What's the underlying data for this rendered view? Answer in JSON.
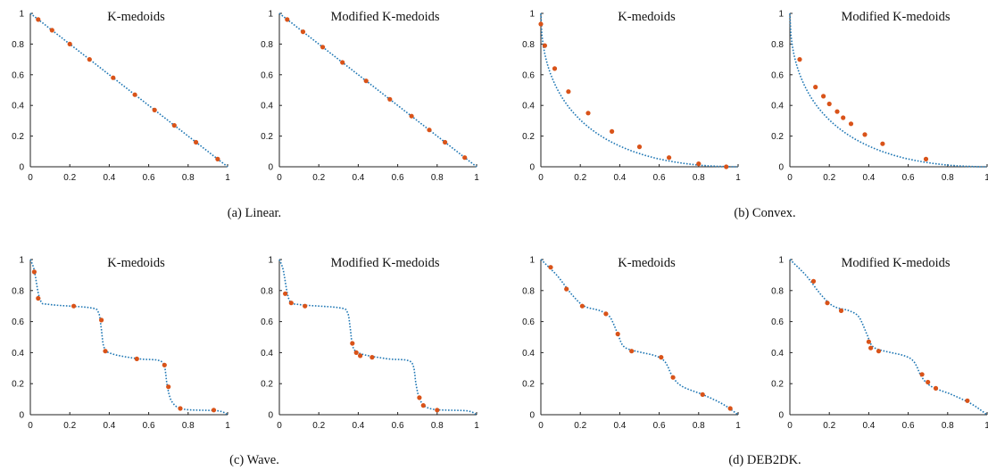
{
  "colors": {
    "curve": "#1f77b4",
    "points": "#d95319",
    "axis": "#222222"
  },
  "captions": [
    "(a)  Linear.",
    "(b)  Convex.",
    "(c)  Wave.",
    "(d)  DEB2DK."
  ],
  "chart_data": [
    {
      "type": "scatter",
      "title": "K-medoids",
      "curve": "linear",
      "xlim": [
        0,
        1
      ],
      "ylim": [
        0,
        1
      ],
      "xticks": [
        "0",
        "0.2",
        "0.4",
        "0.6",
        "0.8",
        "1"
      ],
      "yticks": [
        "0",
        "0.2",
        "0.4",
        "0.6",
        "0.8",
        "1"
      ],
      "grid": false,
      "points": [
        [
          0.04,
          0.96
        ],
        [
          0.11,
          0.89
        ],
        [
          0.2,
          0.8
        ],
        [
          0.3,
          0.7
        ],
        [
          0.42,
          0.58
        ],
        [
          0.53,
          0.47
        ],
        [
          0.63,
          0.37
        ],
        [
          0.73,
          0.27
        ],
        [
          0.84,
          0.16
        ],
        [
          0.95,
          0.05
        ]
      ]
    },
    {
      "type": "scatter",
      "title": "Modified K-medoids",
      "curve": "linear",
      "xlim": [
        0,
        1
      ],
      "ylim": [
        0,
        1
      ],
      "xticks": [
        "0",
        "0.2",
        "0.4",
        "0.6",
        "0.8",
        "1"
      ],
      "yticks": [
        "0",
        "0.2",
        "0.4",
        "0.6",
        "0.8",
        "1"
      ],
      "grid": false,
      "points": [
        [
          0.04,
          0.96
        ],
        [
          0.12,
          0.88
        ],
        [
          0.22,
          0.78
        ],
        [
          0.32,
          0.68
        ],
        [
          0.44,
          0.56
        ],
        [
          0.56,
          0.44
        ],
        [
          0.67,
          0.33
        ],
        [
          0.76,
          0.24
        ],
        [
          0.84,
          0.16
        ],
        [
          0.94,
          0.06
        ]
      ]
    },
    {
      "type": "scatter",
      "title": "K-medoids",
      "curve": "convex",
      "xlim": [
        0,
        1
      ],
      "ylim": [
        0,
        1
      ],
      "xticks": [
        "0",
        "0.2",
        "0.4",
        "0.6",
        "0.8",
        "1"
      ],
      "yticks": [
        "0",
        "0.2",
        "0.4",
        "0.6",
        "0.8",
        "1"
      ],
      "grid": false,
      "points": [
        [
          0.0,
          0.93
        ],
        [
          0.02,
          0.79
        ],
        [
          0.07,
          0.64
        ],
        [
          0.14,
          0.49
        ],
        [
          0.24,
          0.35
        ],
        [
          0.36,
          0.23
        ],
        [
          0.5,
          0.13
        ],
        [
          0.65,
          0.06
        ],
        [
          0.8,
          0.02
        ],
        [
          0.94,
          0.0
        ]
      ]
    },
    {
      "type": "scatter",
      "title": "Modified K-medoids",
      "curve": "convex",
      "xlim": [
        0,
        1
      ],
      "ylim": [
        0,
        1
      ],
      "xticks": [
        "0",
        "0.2",
        "0.4",
        "0.6",
        "0.8",
        "1"
      ],
      "yticks": [
        "0",
        "0.2",
        "0.4",
        "0.6",
        "0.8",
        "1"
      ],
      "grid": false,
      "points": [
        [
          0.05,
          0.7
        ],
        [
          0.13,
          0.52
        ],
        [
          0.17,
          0.46
        ],
        [
          0.2,
          0.41
        ],
        [
          0.24,
          0.36
        ],
        [
          0.27,
          0.32
        ],
        [
          0.31,
          0.28
        ],
        [
          0.38,
          0.21
        ],
        [
          0.47,
          0.15
        ],
        [
          0.69,
          0.05
        ]
      ]
    },
    {
      "type": "scatter",
      "title": "K-medoids",
      "curve": "wave",
      "xlim": [
        0,
        1
      ],
      "ylim": [
        0,
        1
      ],
      "xticks": [
        "0",
        "0.2",
        "0.4",
        "0.6",
        "0.8",
        "1"
      ],
      "yticks": [
        "0",
        "0.2",
        "0.4",
        "0.6",
        "0.8",
        "1"
      ],
      "grid": false,
      "points": [
        [
          0.02,
          0.92
        ],
        [
          0.04,
          0.75
        ],
        [
          0.22,
          0.7
        ],
        [
          0.36,
          0.61
        ],
        [
          0.38,
          0.41
        ],
        [
          0.54,
          0.36
        ],
        [
          0.68,
          0.32
        ],
        [
          0.7,
          0.18
        ],
        [
          0.76,
          0.04
        ],
        [
          0.93,
          0.03
        ]
      ]
    },
    {
      "type": "scatter",
      "title": "Modified K-medoids",
      "curve": "wave",
      "xlim": [
        0,
        1
      ],
      "ylim": [
        0,
        1
      ],
      "xticks": [
        "0",
        "0.2",
        "0.4",
        "0.6",
        "0.8",
        "1"
      ],
      "yticks": [
        "0",
        "0.2",
        "0.4",
        "0.6",
        "0.8",
        "1"
      ],
      "grid": false,
      "points": [
        [
          0.03,
          0.78
        ],
        [
          0.06,
          0.72
        ],
        [
          0.13,
          0.7
        ],
        [
          0.37,
          0.46
        ],
        [
          0.39,
          0.4
        ],
        [
          0.41,
          0.38
        ],
        [
          0.47,
          0.37
        ],
        [
          0.71,
          0.11
        ],
        [
          0.73,
          0.06
        ],
        [
          0.8,
          0.03
        ]
      ]
    },
    {
      "type": "scatter",
      "title": "K-medoids",
      "curve": "deb2dk",
      "xlim": [
        0,
        1
      ],
      "ylim": [
        0,
        1
      ],
      "xticks": [
        "0",
        "0.2",
        "0.4",
        "0.6",
        "0.8",
        "1"
      ],
      "yticks": [
        "0",
        "0.2",
        "0.4",
        "0.6",
        "0.8",
        "1"
      ],
      "grid": false,
      "points": [
        [
          0.05,
          0.95
        ],
        [
          0.13,
          0.81
        ],
        [
          0.21,
          0.7
        ],
        [
          0.33,
          0.65
        ],
        [
          0.39,
          0.52
        ],
        [
          0.46,
          0.41
        ],
        [
          0.61,
          0.37
        ],
        [
          0.67,
          0.24
        ],
        [
          0.82,
          0.13
        ],
        [
          0.96,
          0.04
        ]
      ]
    },
    {
      "type": "scatter",
      "title": "Modified K-medoids",
      "curve": "deb2dk",
      "xlim": [
        0,
        1
      ],
      "ylim": [
        0,
        1
      ],
      "xticks": [
        "0",
        "0.2",
        "0.4",
        "0.6",
        "0.8",
        "1"
      ],
      "yticks": [
        "0",
        "0.2",
        "0.4",
        "0.6",
        "0.8",
        "1"
      ],
      "grid": false,
      "points": [
        [
          0.12,
          0.86
        ],
        [
          0.19,
          0.72
        ],
        [
          0.26,
          0.67
        ],
        [
          0.4,
          0.47
        ],
        [
          0.41,
          0.43
        ],
        [
          0.45,
          0.41
        ],
        [
          0.67,
          0.26
        ],
        [
          0.7,
          0.21
        ],
        [
          0.74,
          0.17
        ],
        [
          0.9,
          0.09
        ]
      ]
    }
  ]
}
